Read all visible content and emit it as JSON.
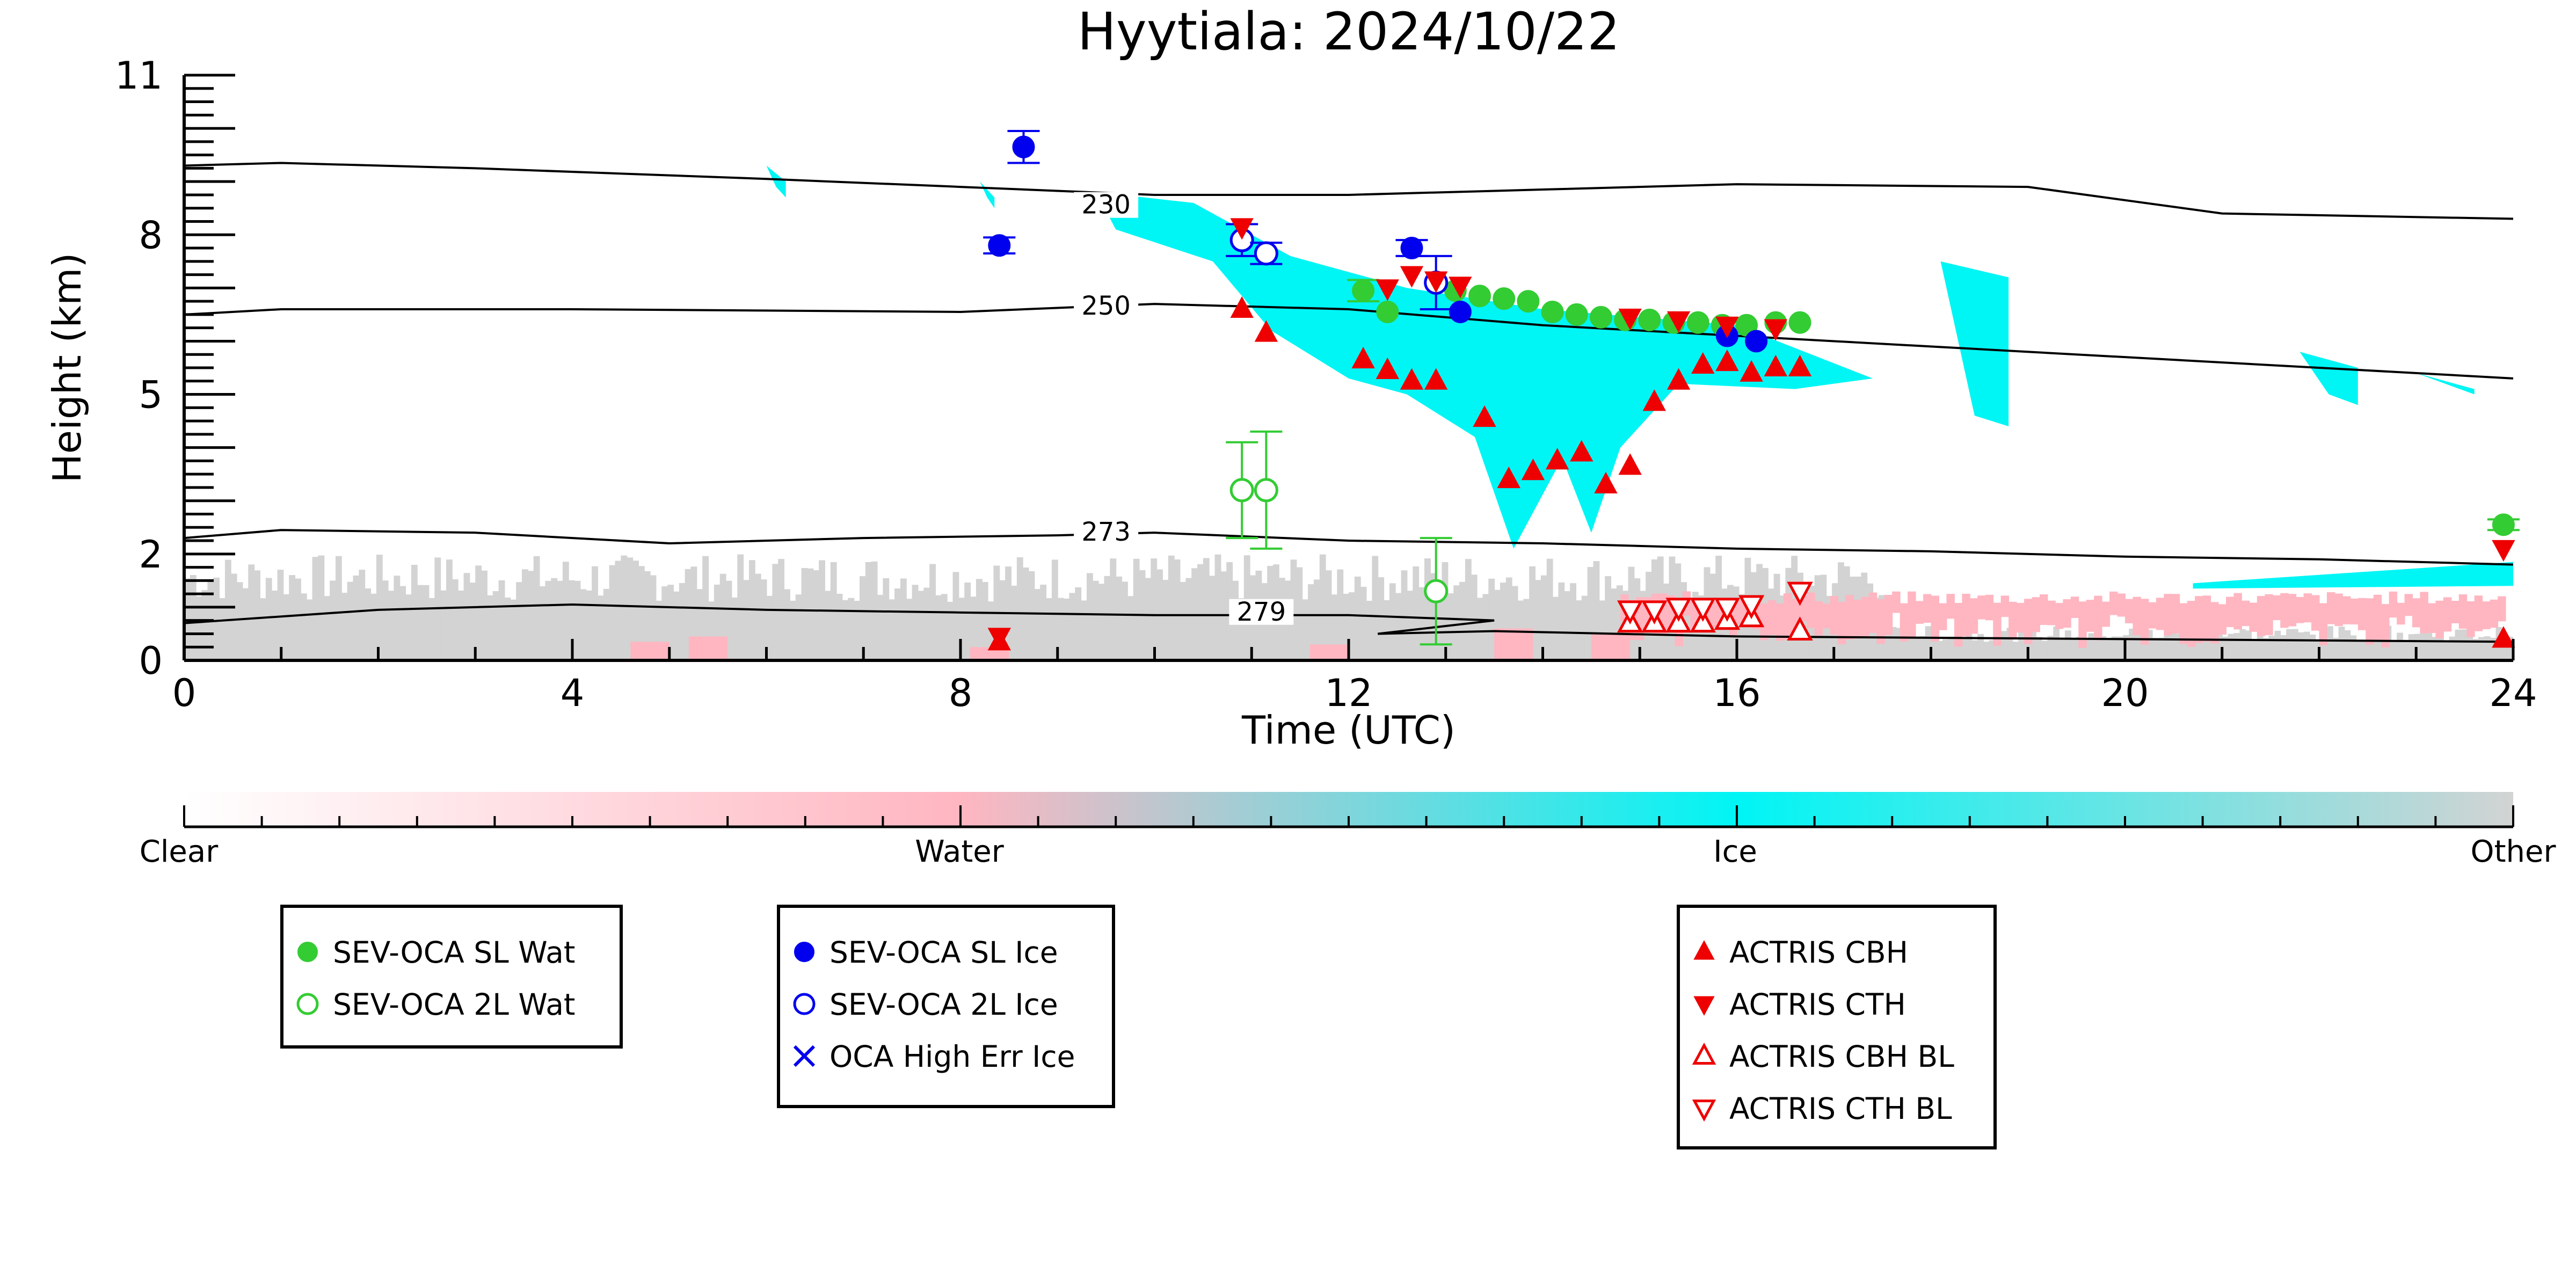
{
  "chart_data": {
    "type": "scatter",
    "title": "Hyytiala: 2024/10/22",
    "xlabel": "Time (UTC)",
    "ylabel": "Height (km)",
    "xlim": [
      0,
      24
    ],
    "ylim": [
      0,
      11
    ],
    "x_ticks": [
      0,
      4,
      8,
      12,
      16,
      20,
      24
    ],
    "x_tick_labels": [
      "0",
      "4",
      "8",
      "12",
      "16",
      "20",
      "24"
    ],
    "y_ticks": [
      0,
      2,
      5,
      8,
      11
    ],
    "y_tick_labels": [
      "0",
      "2",
      "5",
      "8",
      "11"
    ],
    "grid": false,
    "colors": {
      "clear": "#ffffff",
      "water": "#ffb6c1",
      "ice": "#00f5f5",
      "other": "#d3d3d3",
      "sev_wat": "#33cc33",
      "sev_ice": "#0000ee",
      "actris": "#ee0000"
    },
    "colorbar": {
      "labels": [
        "Clear",
        "Water",
        "Ice",
        "Other"
      ],
      "label_positions": [
        0,
        0.333,
        0.667,
        1
      ]
    },
    "contours": [
      {
        "label": "230",
        "label_at": [
          9.5,
          8.5
        ],
        "points": [
          [
            0,
            9.3
          ],
          [
            1,
            9.35
          ],
          [
            3,
            9.25
          ],
          [
            6,
            9.05
          ],
          [
            8,
            8.9
          ],
          [
            10,
            8.75
          ],
          [
            12,
            8.75
          ],
          [
            14,
            8.85
          ],
          [
            16,
            8.95
          ],
          [
            19,
            8.9
          ],
          [
            21,
            8.4
          ],
          [
            24,
            8.3
          ]
        ]
      },
      {
        "label": "250",
        "label_at": [
          9.5,
          6.6
        ],
        "points": [
          [
            0,
            6.5
          ],
          [
            1,
            6.6
          ],
          [
            4,
            6.6
          ],
          [
            8,
            6.55
          ],
          [
            10,
            6.7
          ],
          [
            12,
            6.6
          ],
          [
            14,
            6.3
          ],
          [
            16,
            6.1
          ],
          [
            18,
            5.9
          ],
          [
            20,
            5.7
          ],
          [
            22,
            5.5
          ],
          [
            24,
            5.3
          ]
        ]
      },
      {
        "label": "273",
        "label_at": [
          9.5,
          2.35
        ],
        "points": [
          [
            0,
            2.3
          ],
          [
            1,
            2.45
          ],
          [
            3,
            2.4
          ],
          [
            5,
            2.2
          ],
          [
            7,
            2.3
          ],
          [
            9,
            2.35
          ],
          [
            10,
            2.4
          ],
          [
            12,
            2.25
          ],
          [
            14,
            2.2
          ],
          [
            16,
            2.1
          ],
          [
            18,
            2.05
          ],
          [
            20,
            1.95
          ],
          [
            22,
            1.9
          ],
          [
            24,
            1.8
          ]
        ]
      },
      {
        "label": "279",
        "label_at": [
          11.1,
          0.85
        ],
        "points": [
          [
            0,
            0.7
          ],
          [
            2,
            0.95
          ],
          [
            4,
            1.05
          ],
          [
            6,
            0.95
          ],
          [
            8,
            0.9
          ],
          [
            10,
            0.85
          ],
          [
            11,
            0.85
          ],
          [
            12,
            0.85
          ],
          [
            13.5,
            0.75
          ],
          [
            12.3,
            0.5
          ],
          [
            13.5,
            0.55
          ],
          [
            16,
            0.45
          ],
          [
            20,
            0.4
          ],
          [
            24,
            0.35
          ]
        ]
      }
    ],
    "series": [
      {
        "name": "SEV-OCA SL Wat",
        "marker": "circle",
        "filled": true,
        "color": "#33cc33",
        "points": [
          [
            12.15,
            6.95,
            0.2
          ],
          [
            12.4,
            6.55,
            0
          ],
          [
            13.1,
            6.95,
            0
          ],
          [
            13.35,
            6.85,
            0
          ],
          [
            13.6,
            6.8,
            0
          ],
          [
            13.85,
            6.75,
            0
          ],
          [
            14.1,
            6.55,
            0
          ],
          [
            14.35,
            6.5,
            0
          ],
          [
            14.6,
            6.45,
            0
          ],
          [
            14.85,
            6.4,
            0
          ],
          [
            15.1,
            6.4,
            0
          ],
          [
            15.35,
            6.35,
            0
          ],
          [
            15.6,
            6.35,
            0
          ],
          [
            15.85,
            6.3,
            0
          ],
          [
            16.1,
            6.3,
            0
          ],
          [
            16.4,
            6.35,
            0
          ],
          [
            16.65,
            6.35,
            0
          ],
          [
            23.9,
            2.55,
            0.1
          ]
        ]
      },
      {
        "name": "SEV-OCA 2L Wat",
        "marker": "circle",
        "filled": false,
        "color": "#33cc33",
        "points": [
          [
            10.9,
            3.2,
            0.9
          ],
          [
            11.15,
            3.2,
            1.1
          ],
          [
            12.9,
            1.3,
            1.0
          ]
        ]
      },
      {
        "name": "SEV-OCA SL Ice",
        "marker": "circle",
        "filled": true,
        "color": "#0000ee",
        "points": [
          [
            8.4,
            7.8,
            0.15
          ],
          [
            8.65,
            9.65,
            0.3
          ],
          [
            12.65,
            7.75,
            0.15
          ],
          [
            13.15,
            6.55,
            0
          ],
          [
            15.9,
            6.1,
            0
          ],
          [
            16.2,
            6.0,
            0
          ]
        ]
      },
      {
        "name": "SEV-OCA 2L Ice",
        "marker": "circle",
        "filled": false,
        "color": "#0000ee",
        "points": [
          [
            10.9,
            7.9,
            0.3
          ],
          [
            11.15,
            7.65,
            0.2
          ],
          [
            12.9,
            7.1,
            0.5
          ]
        ]
      },
      {
        "name": "OCA High Err Ice",
        "marker": "x",
        "filled": false,
        "color": "#0000ee",
        "points": []
      },
      {
        "name": "ACTRIS CBH",
        "marker": "triangle-up",
        "filled": true,
        "color": "#ee0000",
        "points": [
          [
            8.4,
            0.35,
            0
          ],
          [
            10.9,
            6.6,
            0
          ],
          [
            11.15,
            6.15,
            0
          ],
          [
            12.15,
            5.65,
            0
          ],
          [
            12.4,
            5.45,
            0
          ],
          [
            12.65,
            5.25,
            0
          ],
          [
            12.9,
            5.25,
            0
          ],
          [
            13.4,
            4.55,
            0
          ],
          [
            13.65,
            3.4,
            0
          ],
          [
            13.9,
            3.55,
            0
          ],
          [
            14.15,
            3.75,
            0
          ],
          [
            14.4,
            3.9,
            0
          ],
          [
            14.65,
            3.3,
            0
          ],
          [
            14.9,
            3.65,
            0
          ],
          [
            15.15,
            4.85,
            0
          ],
          [
            15.4,
            5.25,
            0
          ],
          [
            15.65,
            5.55,
            0
          ],
          [
            15.9,
            5.6,
            0
          ],
          [
            16.15,
            5.4,
            0
          ],
          [
            16.4,
            5.5,
            0
          ],
          [
            16.65,
            5.5,
            0
          ],
          [
            23.9,
            0.4,
            0
          ]
        ]
      },
      {
        "name": "ACTRIS CTH",
        "marker": "triangle-down",
        "filled": true,
        "color": "#ee0000",
        "points": [
          [
            8.4,
            0.45,
            0
          ],
          [
            10.9,
            8.15,
            0
          ],
          [
            12.4,
            7.0,
            0
          ],
          [
            12.65,
            7.25,
            0
          ],
          [
            12.9,
            7.15,
            0
          ],
          [
            13.15,
            7.05,
            0
          ],
          [
            14.9,
            6.45,
            0
          ],
          [
            15.4,
            6.4,
            0
          ],
          [
            15.9,
            6.3,
            0
          ],
          [
            16.4,
            6.25,
            0
          ],
          [
            23.9,
            2.1,
            0
          ]
        ]
      },
      {
        "name": "ACTRIS CBH BL",
        "marker": "triangle-up",
        "filled": false,
        "color": "#ee0000",
        "points": [
          [
            14.9,
            0.7,
            0
          ],
          [
            15.15,
            0.7,
            0
          ],
          [
            15.4,
            0.7,
            0
          ],
          [
            15.65,
            0.7,
            0
          ],
          [
            15.9,
            0.75,
            0
          ],
          [
            16.15,
            0.8,
            0
          ],
          [
            16.65,
            0.55,
            0
          ]
        ]
      },
      {
        "name": "ACTRIS CTH BL",
        "marker": "triangle-down",
        "filled": false,
        "color": "#ee0000",
        "points": [
          [
            14.9,
            0.95,
            0
          ],
          [
            15.15,
            0.95,
            0
          ],
          [
            15.4,
            1.0,
            0
          ],
          [
            15.65,
            1.0,
            0
          ],
          [
            15.9,
            1.0,
            0
          ],
          [
            16.15,
            1.05,
            0
          ],
          [
            16.65,
            1.3,
            0
          ]
        ]
      }
    ],
    "legends": [
      {
        "items": [
          0,
          1
        ]
      },
      {
        "items": [
          2,
          3,
          4
        ]
      },
      {
        "items": [
          5,
          6,
          7,
          8
        ]
      }
    ]
  }
}
